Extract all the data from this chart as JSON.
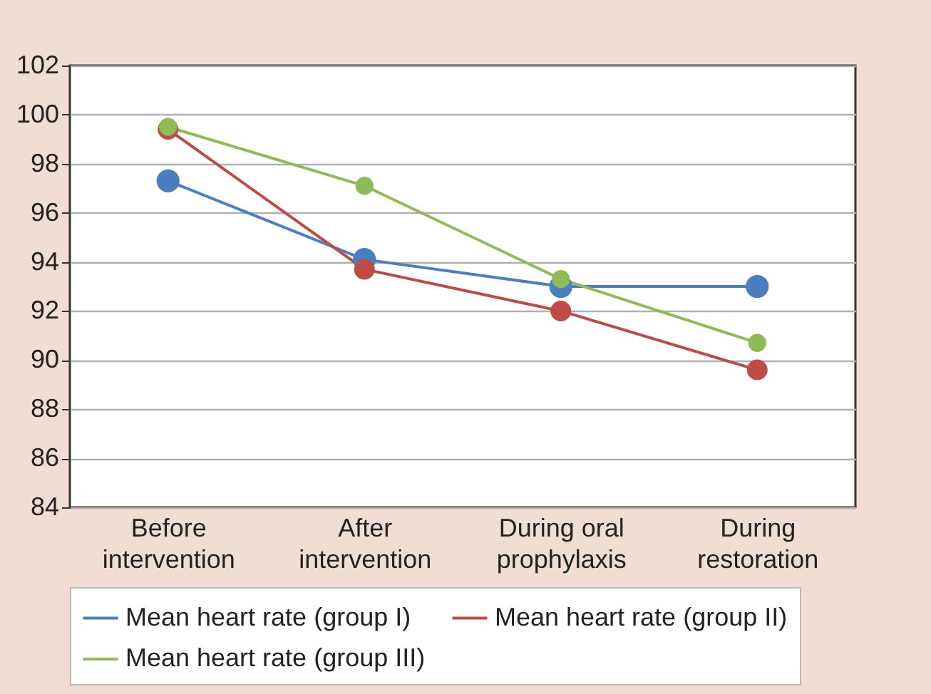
{
  "chart_data": {
    "type": "line",
    "categories": [
      "Before intervention",
      "After intervention",
      "During oral prophylaxis",
      "During restoration"
    ],
    "series": [
      {
        "name": "Mean heart rate (group I)",
        "color": "#4a7ebf",
        "values": [
          97.3,
          94.1,
          93.0,
          93.0
        ]
      },
      {
        "name": "Mean heart rate (group II)",
        "color": "#bf4b47",
        "values": [
          99.4,
          93.7,
          92.0,
          89.6
        ]
      },
      {
        "name": "Mean heart rate (group III)",
        "color": "#8fbb55",
        "values": [
          99.5,
          97.1,
          93.3,
          90.7
        ]
      }
    ],
    "ylim": [
      84,
      102
    ],
    "yticks": [
      84,
      86,
      88,
      90,
      92,
      94,
      96,
      98,
      100,
      102
    ],
    "grid": "y",
    "legend": "bottom",
    "marker": "circle",
    "line_style": "solid"
  }
}
